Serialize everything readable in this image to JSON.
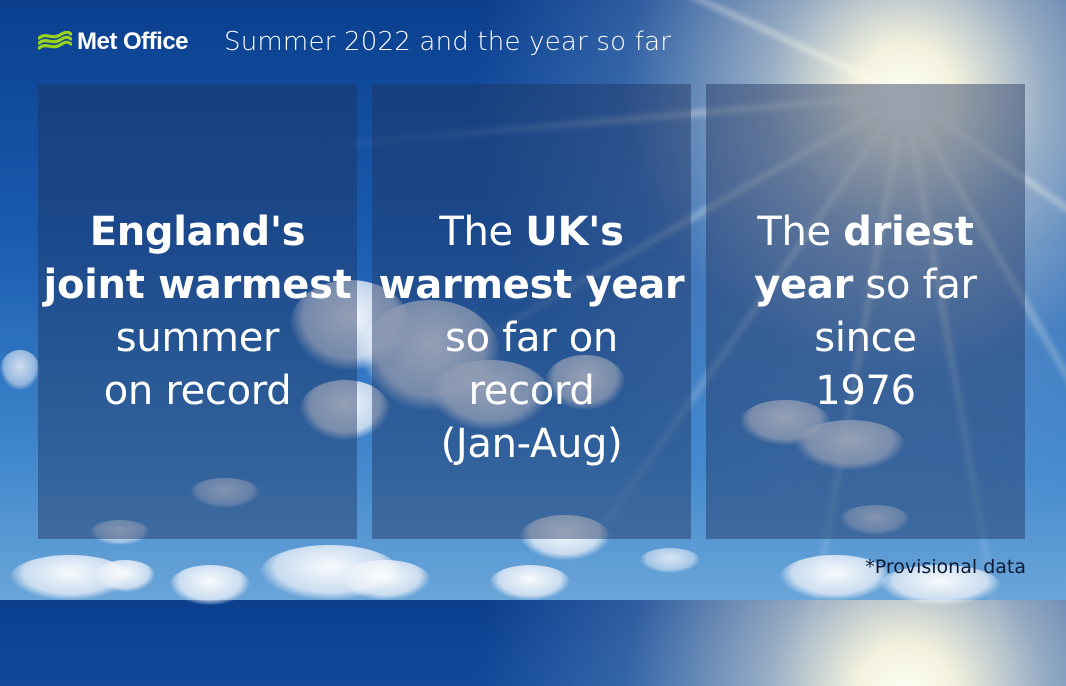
{
  "brand": {
    "name": "Met Office",
    "logo_icon": "met-office-waves-icon",
    "logo_color": "#9bd21a"
  },
  "header": {
    "title": "Summer 2022 and the year so far"
  },
  "cards": [
    {
      "lines": [
        [
          {
            "text": "England's",
            "bold": true
          }
        ],
        [
          {
            "text": "joint warmest",
            "bold": true
          }
        ],
        [
          {
            "text": "summer",
            "bold": false
          }
        ],
        [
          {
            "text": "on record",
            "bold": false
          }
        ]
      ]
    },
    {
      "lines": [
        [
          {
            "text": "The ",
            "bold": false
          },
          {
            "text": "UK's",
            "bold": true
          }
        ],
        [
          {
            "text": "warmest year",
            "bold": true
          }
        ],
        [
          {
            "text": "so far on",
            "bold": false
          }
        ],
        [
          {
            "text": "record",
            "bold": false
          }
        ],
        [
          {
            "text": "(Jan-Aug)",
            "bold": false
          }
        ]
      ]
    },
    {
      "lines": [
        [
          {
            "text": "The ",
            "bold": false
          },
          {
            "text": "driest",
            "bold": true
          }
        ],
        [
          {
            "text": "year",
            "bold": true
          },
          {
            "text": " so far",
            "bold": false
          }
        ],
        [
          {
            "text": "since",
            "bold": false
          }
        ],
        [
          {
            "text": "1976",
            "bold": false
          }
        ]
      ]
    }
  ],
  "footnote": "*Provisional data",
  "colors": {
    "sky_top": "#0b3f8e",
    "sky_bottom": "#6aa5d8",
    "card_overlay": "rgba(32,52,96,0.45)",
    "footnote_text": "#0d1a33"
  }
}
